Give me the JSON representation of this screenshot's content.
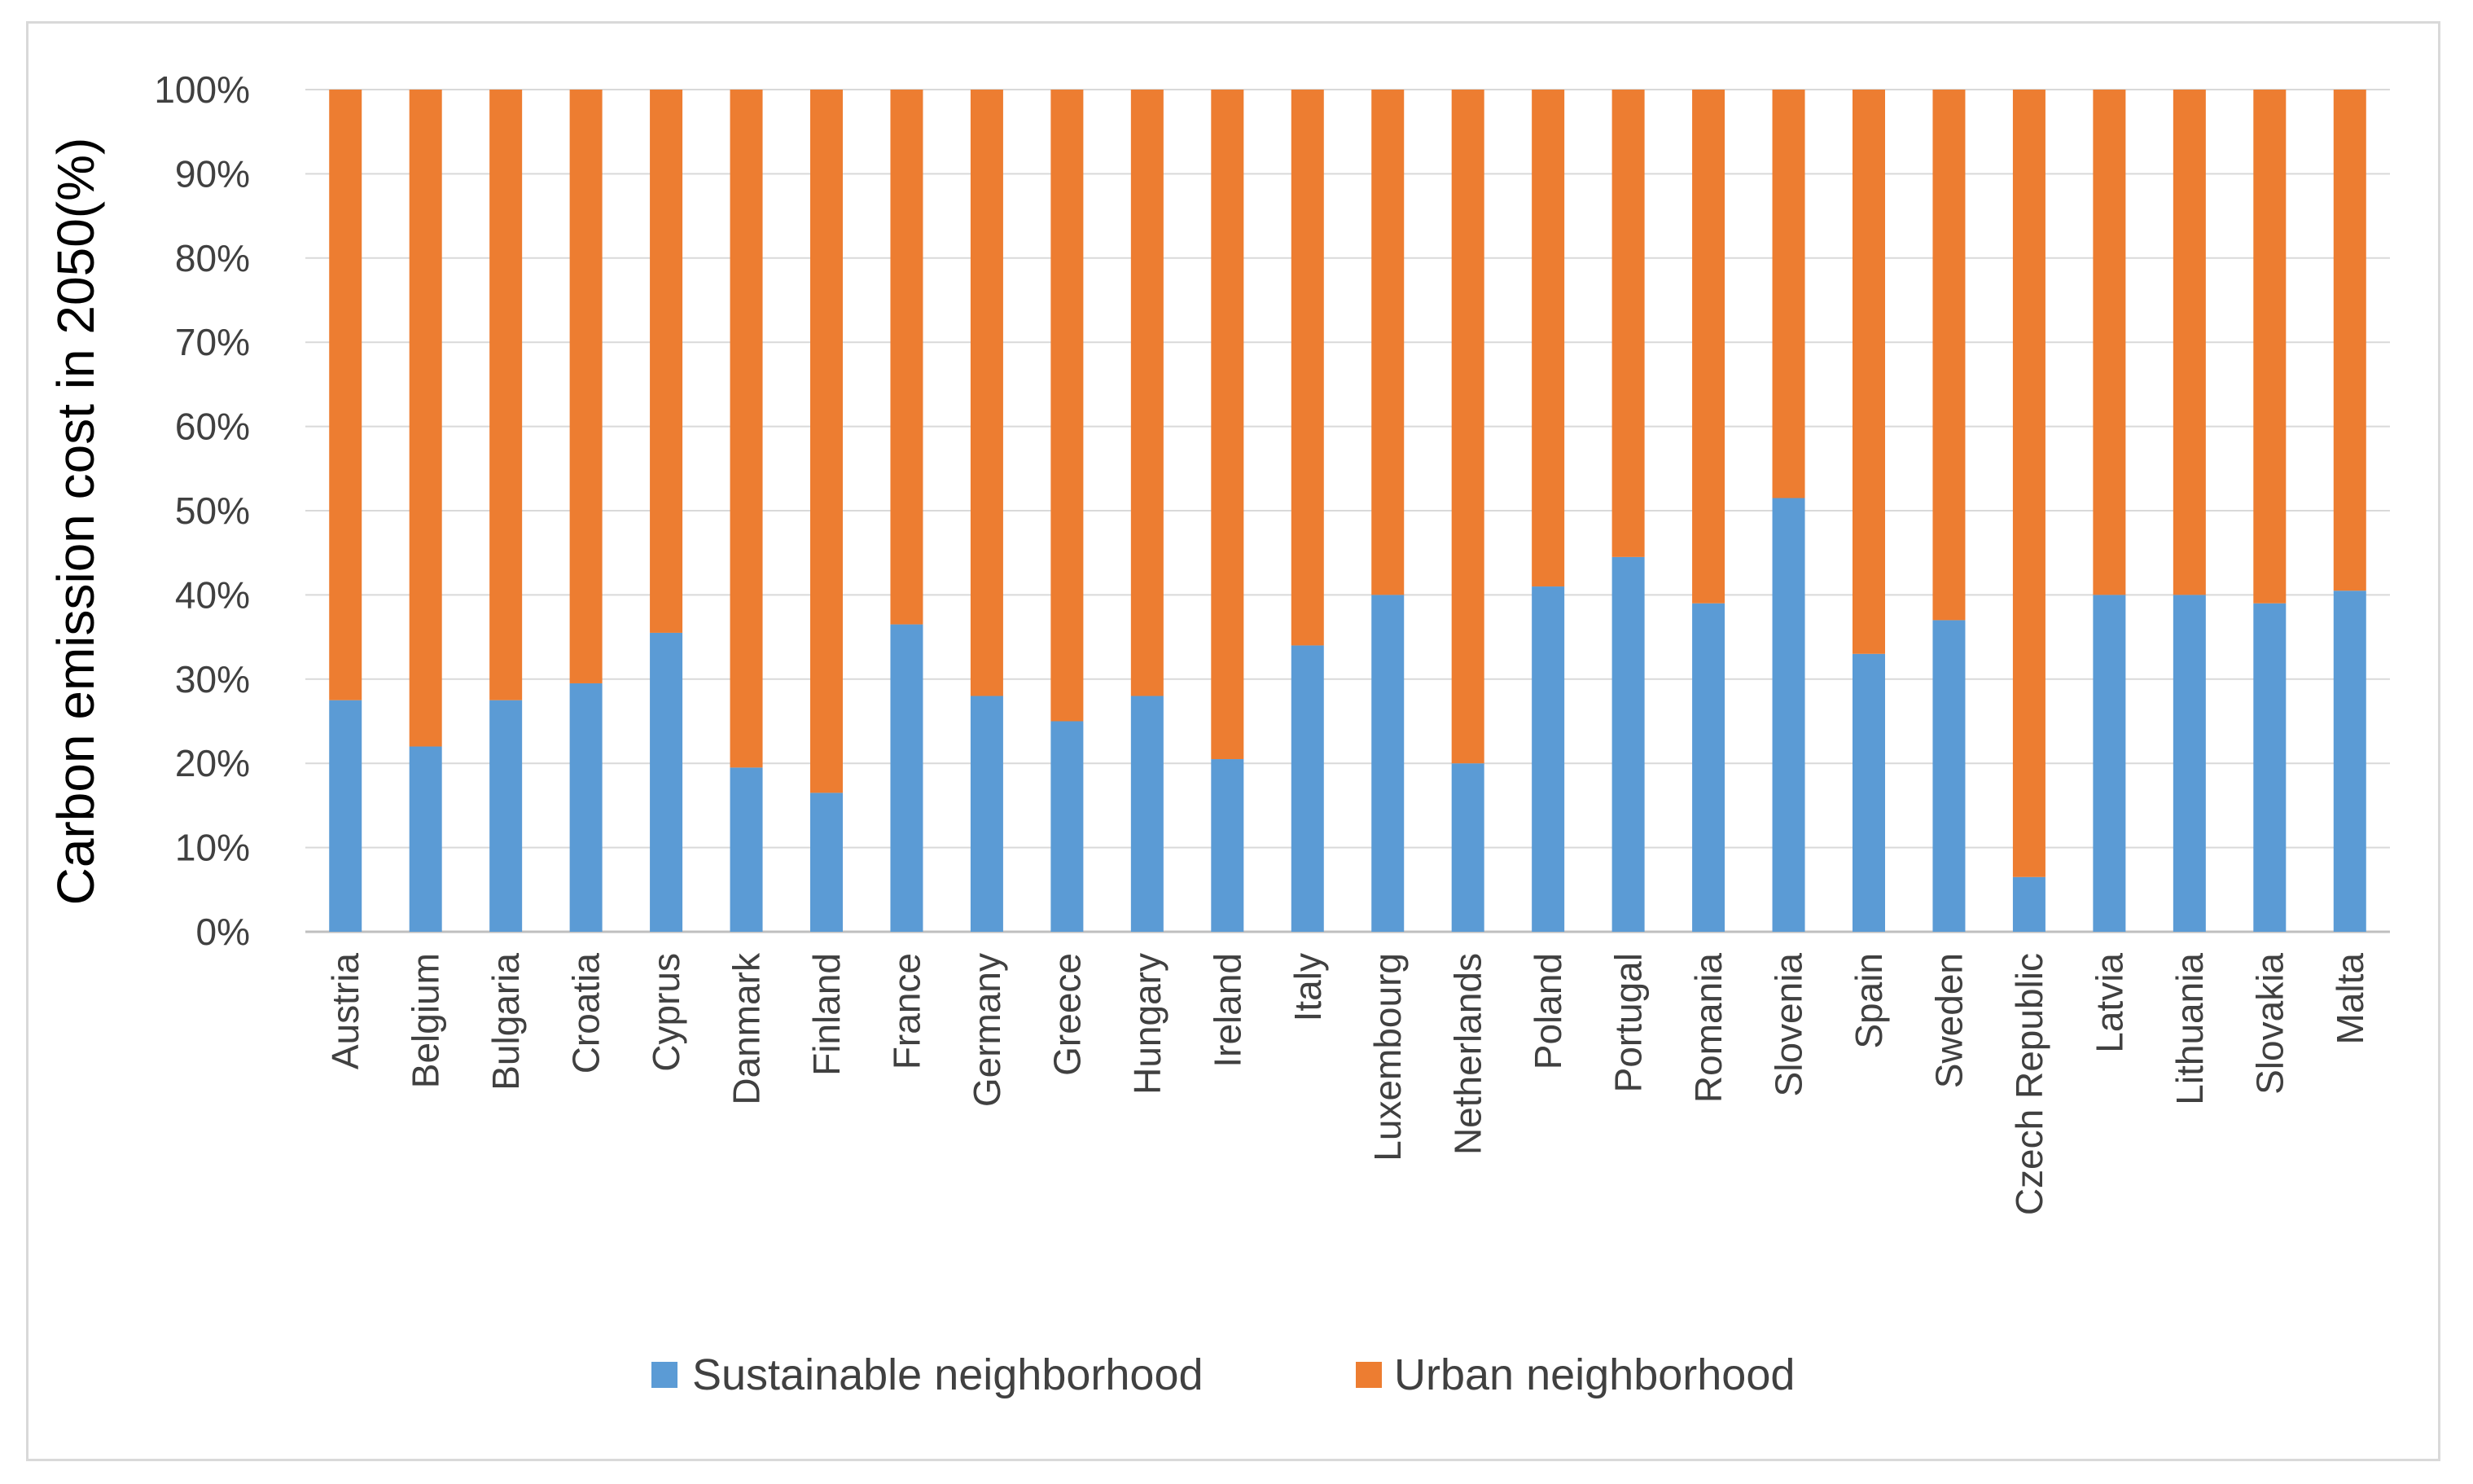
{
  "chart_data": {
    "type": "bar",
    "stacked": true,
    "percent_stacked": true,
    "title": "",
    "xlabel": "",
    "ylabel": "Carbon emission cost in 2050(%)",
    "ylim": [
      0,
      100
    ],
    "yticks": [
      "0%",
      "10%",
      "20%",
      "30%",
      "40%",
      "50%",
      "60%",
      "70%",
      "80%",
      "90%",
      "100%"
    ],
    "grid": true,
    "legend_position": "bottom",
    "categories": [
      "Austria",
      "Belgium",
      "Bulgaria",
      "Croatia",
      "Cyprus",
      "Danmark",
      "Finland",
      "France",
      "Germany",
      "Greece",
      "Hungary",
      "Ireland",
      "Italy",
      "Luxembourg",
      "Netherlands",
      "Poland",
      "Portugal",
      "Romania",
      "Slovenia",
      "Spain",
      "Sweden",
      "Czech Republic",
      "Latvia",
      "Lithuania",
      "Slovakia",
      "Malta"
    ],
    "series": [
      {
        "name": "Sustainable neighborhood",
        "color": "#5b9bd5",
        "values": [
          27.5,
          22,
          27.5,
          29.5,
          35.5,
          19.5,
          16.5,
          36.5,
          28,
          25,
          28,
          20.5,
          34,
          40,
          20,
          41,
          44.5,
          39,
          51.5,
          33,
          37,
          6.5,
          40,
          40,
          39,
          40.5
        ]
      },
      {
        "name": "Urban neighborhood",
        "color": "#ed7d31",
        "values": [
          72.5,
          78,
          72.5,
          70.5,
          64.5,
          80.5,
          83.5,
          63.5,
          72,
          75,
          72,
          79.5,
          66,
          60,
          80,
          59,
          55.5,
          61,
          48.5,
          67,
          63,
          93.5,
          60,
          60,
          61,
          59.5
        ]
      }
    ]
  }
}
